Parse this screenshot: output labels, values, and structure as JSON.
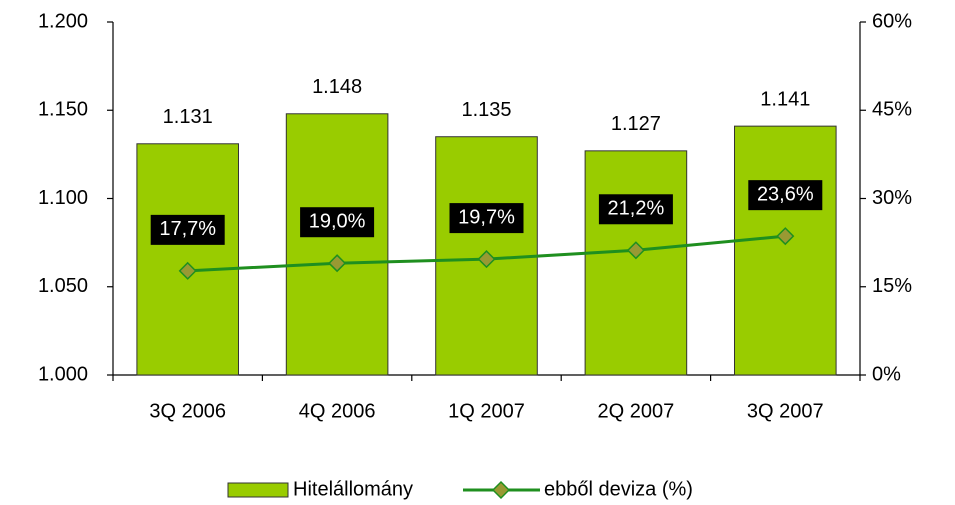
{
  "chart_data": {
    "type": "bar",
    "categories": [
      "3Q 2006",
      "4Q 2006",
      "1Q 2007",
      "2Q 2007",
      "3Q 2007"
    ],
    "series": [
      {
        "name": "Hitelállomány",
        "type": "bar",
        "color": "#99cc00",
        "axis": "y",
        "values": [
          1131,
          1148,
          1135,
          1127,
          1141
        ],
        "value_labels": [
          "1.131",
          "1.148",
          "1.135",
          "1.127",
          "1.141"
        ]
      },
      {
        "name": "ebből deviza (%)",
        "type": "line",
        "color": "#1f8f1f",
        "marker_color": "#999933",
        "axis": "y2",
        "values": [
          17.7,
          19.0,
          19.7,
          21.2,
          23.6
        ],
        "value_labels": [
          "17,7%",
          "19,0%",
          "19,7%",
          "21,2%",
          "23,6%"
        ]
      }
    ],
    "ylim": [
      1000,
      1200
    ],
    "yticks": [
      {
        "value": 1000,
        "label": "1.000"
      },
      {
        "value": 1050,
        "label": "1.050"
      },
      {
        "value": 1100,
        "label": "1.100"
      },
      {
        "value": 1150,
        "label": "1.150"
      },
      {
        "value": 1200,
        "label": "1.200"
      }
    ],
    "y2lim": [
      0,
      60
    ],
    "y2ticks": [
      {
        "value": 0,
        "label": "0%"
      },
      {
        "value": 15,
        "label": "15%"
      },
      {
        "value": 30,
        "label": "30%"
      },
      {
        "value": 45,
        "label": "45%"
      },
      {
        "value": 60,
        "label": "60%"
      }
    ],
    "grid": false,
    "legend": "bottom"
  }
}
